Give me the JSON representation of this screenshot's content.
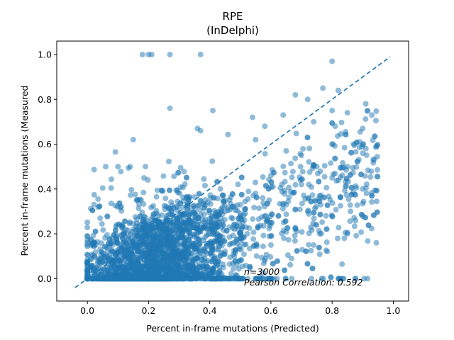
{
  "chart_data": {
    "type": "scatter",
    "title": "RPE",
    "subtitle": "(InDelphi)",
    "xlabel": "Percent in-frame mutations (Predicted)",
    "ylabel": "Percent in-frame mutations (Measured",
    "xlim": [
      -0.1,
      1.05
    ],
    "ylim": [
      -0.1,
      1.06
    ],
    "xticks": [
      "0.0",
      "0.2",
      "0.4",
      "0.6",
      "0.8",
      "1.0"
    ],
    "yticks": [
      "0.0",
      "0.2",
      "0.4",
      "0.6",
      "0.8",
      "1.0"
    ],
    "grid": false,
    "marker_color": "#1f77b4",
    "marker_alpha": 0.5,
    "n_points": 3000,
    "points_visible_sample": [
      [
        0.18,
        1.0
      ],
      [
        0.2,
        1.0
      ],
      [
        0.21,
        1.0
      ],
      [
        0.27,
        1.0
      ],
      [
        0.37,
        1.0
      ],
      [
        0.8,
        0.97
      ],
      [
        0.77,
        0.85
      ],
      [
        0.68,
        0.82
      ],
      [
        0.82,
        0.84
      ],
      [
        0.72,
        0.8
      ],
      [
        0.27,
        0.76
      ],
      [
        0.41,
        0.75
      ],
      [
        0.91,
        0.78
      ],
      [
        0.8,
        0.75
      ],
      [
        0.85,
        0.74
      ],
      [
        0.93,
        0.73
      ],
      [
        0.54,
        0.72
      ],
      [
        0.64,
        0.73
      ],
      [
        0.81,
        0.68
      ],
      [
        0.36,
        0.67
      ],
      [
        0.37,
        0.66
      ],
      [
        0.58,
        0.68
      ],
      [
        0.74,
        0.7
      ],
      [
        0.55,
        0.62
      ],
      [
        0.15,
        0.62
      ],
      [
        0.9,
        0.67
      ],
      [
        0.06,
        0.5
      ],
      [
        0.1,
        0.5
      ],
      [
        0.14,
        0.5
      ],
      [
        0.19,
        0.5
      ],
      [
        0.65,
        0.57
      ],
      [
        0.7,
        0.55
      ],
      [
        0.8,
        0.6
      ],
      [
        0.87,
        0.6
      ],
      [
        0.9,
        0.56
      ],
      [
        0.75,
        0.5
      ],
      [
        0.85,
        0.5
      ],
      [
        0.6,
        0.46
      ],
      [
        0.7,
        0.42
      ],
      [
        0.8,
        0.45
      ],
      [
        0.9,
        0.4
      ],
      [
        0.55,
        0.38
      ],
      [
        0.65,
        0.33
      ],
      [
        0.72,
        0.3
      ],
      [
        0.78,
        0.28
      ],
      [
        0.86,
        0.3
      ],
      [
        0.6,
        0.25
      ],
      [
        0.68,
        0.22
      ],
      [
        0.76,
        0.2
      ],
      [
        0.85,
        0.2
      ],
      [
        0.5,
        0.2
      ],
      [
        0.6,
        0.15
      ],
      [
        0.74,
        0.15
      ],
      [
        0.84,
        0.18
      ],
      [
        0.45,
        0.3
      ],
      [
        0.5,
        0.33
      ],
      [
        0.48,
        0.1
      ],
      [
        0.58,
        0.08
      ],
      [
        0.62,
        0.0
      ],
      [
        0.55,
        0.0
      ]
    ],
    "diagonal_line": {
      "x": [
        -0.04,
        0.99
      ],
      "y": [
        -0.04,
        0.99
      ],
      "style": "dashed"
    },
    "annotations": [
      "n=3000",
      "Pearson Correlation: 0.592"
    ]
  }
}
